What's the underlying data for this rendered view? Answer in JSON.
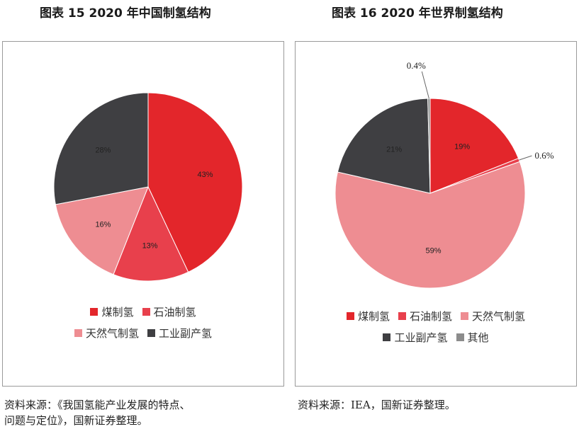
{
  "titles": {
    "left": "图表 15  2020 年中国制氢结构",
    "right": "图表 16  2020 年世界制氢结构"
  },
  "sources": {
    "left_line1": "资料来源：《我国氢能产业发展的特点、",
    "left_line2": "问题与定位》，国新证券整理。",
    "right": "资料来源：IEA，国新证券整理。"
  },
  "chart_data": [
    {
      "type": "pie",
      "title": "图表 15  2020 年中国制氢结构",
      "slices": [
        {
          "label": "煤制氢",
          "value": 43,
          "display": "43%",
          "color": "#e3262b"
        },
        {
          "label": "石油制氢",
          "value": 13,
          "display": "13%",
          "color": "#e8404c"
        },
        {
          "label": "天然气制氢",
          "value": 16,
          "display": "16%",
          "color": "#ee8d92"
        },
        {
          "label": "工业副产氢",
          "value": 28,
          "display": "28%",
          "color": "#3f3f42"
        }
      ],
      "legend": {
        "position": "bottom",
        "rows": [
          [
            "煤制氢",
            "石油制氢"
          ],
          [
            "天然气制氢",
            "工业副产氢"
          ]
        ]
      }
    },
    {
      "type": "pie",
      "title": "图表 16  2020 年世界制氢结构",
      "slices": [
        {
          "label": "煤制氢",
          "value": 19,
          "display": "19%",
          "color": "#e3262b"
        },
        {
          "label": "石油制氢",
          "value": 0.6,
          "display": "0.6%",
          "color": "#e8404c"
        },
        {
          "label": "天然气制氢",
          "value": 59,
          "display": "59%",
          "color": "#ee8d92"
        },
        {
          "label": "工业副产氢",
          "value": 21,
          "display": "21%",
          "color": "#3f3f42"
        },
        {
          "label": "其他",
          "value": 0.4,
          "display": "0.4%",
          "color": "#8c8c8c"
        }
      ],
      "legend": {
        "position": "bottom",
        "rows": [
          [
            "煤制氢",
            "石油制氢",
            "天然气制氢"
          ],
          [
            "工业副产氢",
            "其他"
          ]
        ]
      }
    }
  ]
}
